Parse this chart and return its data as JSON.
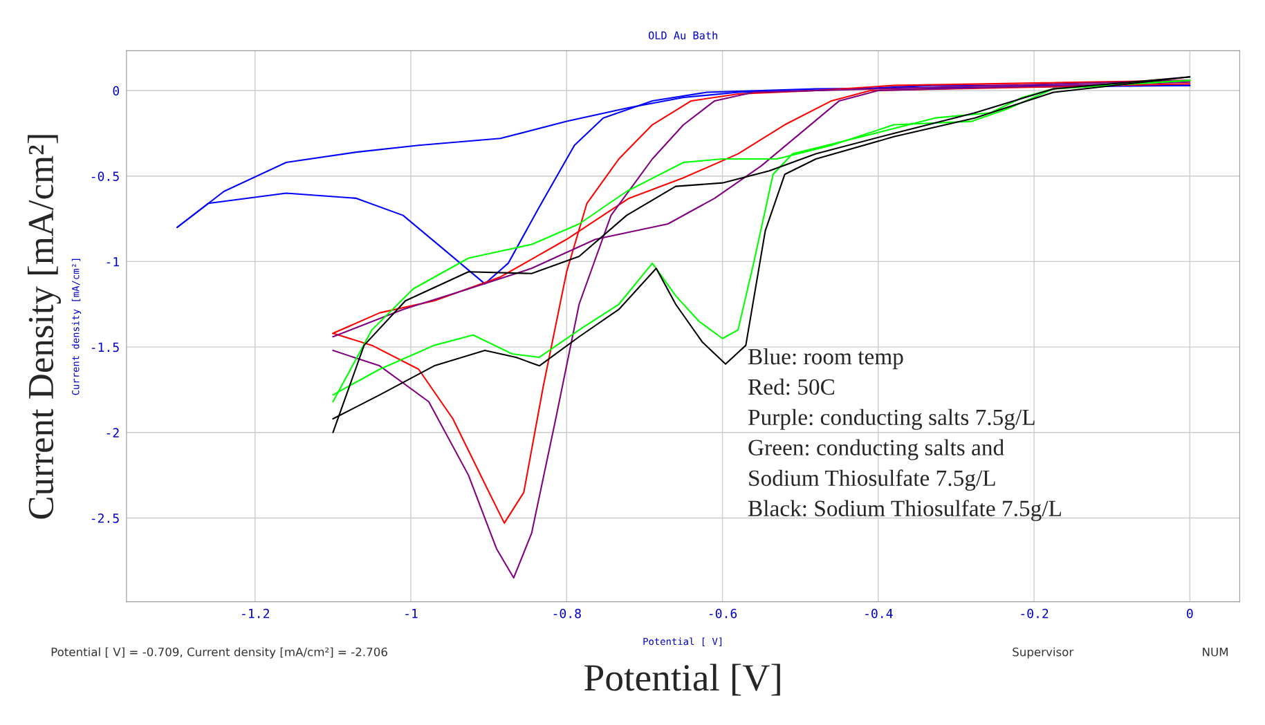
{
  "chart_data": {
    "type": "line",
    "title": "OLD Au Bath",
    "xlabel": "Potential [V]",
    "ylabel": "Current Density [mA/cm²]",
    "xlim": [
      -1.365,
      0.064
    ],
    "ylim": [
      -2.99,
      0.233
    ],
    "xticks": [
      -1.2,
      -1,
      -0.8,
      -0.6,
      -0.4,
      -0.2,
      0
    ],
    "yticks": [
      0,
      -0.5,
      -1,
      -1.5,
      -2,
      -2.5
    ],
    "grid": true,
    "line_style": "solid",
    "marker": "none",
    "annotations": [
      "Blue: room temp",
      "Red: 50C",
      "Purple: conducting salts 7.5g/L",
      "Green: conducting salts and",
      "Sodium Thiosulfate 7.5g/L",
      "Black: Sodium Thiosulfate 7.5g/L",
      "Potential [ V]",
      "Current density [mA/cm²]",
      "Potential [ V] = -0.709, Current density [mA/cm²] = -2.706",
      "Supervisor",
      "NUM"
    ],
    "series": [
      {
        "color": "#0000ff",
        "x": [
          0,
          -0.33,
          -0.48,
          -0.58,
          -0.65,
          -0.72,
          -0.8,
          -0.885,
          -0.99,
          -1.07,
          -1.16,
          -1.24,
          -1.3
        ],
        "values": [
          0.03,
          0.03,
          0,
          -0.01,
          -0.04,
          -0.1,
          -0.18,
          -0.28,
          -0.32,
          -0.36,
          -0.42,
          -0.59,
          -0.8
        ]
      },
      {
        "color": "#0000ff",
        "x": [
          -1.3,
          -1.26,
          -1.16,
          -1.07,
          -1.01,
          -0.96,
          -0.905,
          -0.875,
          -0.835,
          -0.79,
          -0.753,
          -0.69,
          -0.62,
          -0.48,
          0
        ],
        "values": [
          -0.8,
          -0.66,
          -0.6,
          -0.63,
          -0.73,
          -0.92,
          -1.13,
          -1.01,
          -0.68,
          -0.32,
          -0.16,
          -0.06,
          -0.01,
          0.01,
          0.03
        ]
      },
      {
        "color": "#ff0000",
        "x": [
          0,
          -0.41,
          -0.46,
          -0.52,
          -0.58,
          -0.65,
          -0.72,
          -0.8,
          -0.885,
          -0.97,
          -1.04,
          -1.1
        ],
        "values": [
          0.04,
          0,
          -0.06,
          -0.2,
          -0.37,
          -0.51,
          -0.63,
          -0.87,
          -1.09,
          -1.23,
          -1.3,
          -1.42
        ]
      },
      {
        "color": "#ff0000",
        "x": [
          -1.1,
          -1.05,
          -0.99,
          -0.946,
          -0.905,
          -0.88,
          -0.855,
          -0.83,
          -0.8,
          -0.774,
          -0.733,
          -0.69,
          -0.64,
          -0.58,
          -0.48,
          -0.38,
          0
        ],
        "values": [
          -1.42,
          -1.49,
          -1.63,
          -1.92,
          -2.3,
          -2.53,
          -2.35,
          -1.73,
          -1.06,
          -0.66,
          -0.4,
          -0.2,
          -0.06,
          -0.02,
          0,
          0.03,
          0.06
        ]
      },
      {
        "color": "#800080",
        "x": [
          0,
          -0.4,
          -0.45,
          -0.5,
          -0.55,
          -0.61,
          -0.67,
          -0.763,
          -0.845,
          -0.926,
          -1.01,
          -1.1
        ],
        "values": [
          0.05,
          0,
          -0.06,
          -0.25,
          -0.44,
          -0.63,
          -0.78,
          -0.87,
          -1.04,
          -1.16,
          -1.28,
          -1.44
        ]
      },
      {
        "color": "#800080",
        "x": [
          -1.1,
          -1.04,
          -0.977,
          -0.926,
          -0.89,
          -0.868,
          -0.845,
          -0.814,
          -0.784,
          -0.743,
          -0.69,
          -0.65,
          -0.61,
          -0.56,
          0
        ],
        "values": [
          -1.52,
          -1.61,
          -1.82,
          -2.25,
          -2.68,
          -2.85,
          -2.59,
          -1.92,
          -1.25,
          -0.73,
          -0.4,
          -0.2,
          -0.06,
          -0.01,
          0.06
        ]
      },
      {
        "color": "#00ff00",
        "x": [
          0,
          -0.175,
          -0.236,
          -0.28,
          -0.38,
          -0.46,
          -0.53,
          -0.6,
          -0.65,
          -0.723,
          -0.784,
          -0.845,
          -0.926,
          -0.997,
          -1.05,
          -1.1
        ],
        "values": [
          0.06,
          0.01,
          -0.11,
          -0.18,
          -0.2,
          -0.32,
          -0.4,
          -0.4,
          -0.42,
          -0.59,
          -0.78,
          -0.9,
          -0.98,
          -1.16,
          -1.4,
          -1.82
        ]
      },
      {
        "color": "#00ff00",
        "x": [
          -1.1,
          -1.04,
          -0.97,
          -0.92,
          -0.87,
          -0.835,
          -0.784,
          -0.733,
          -0.69,
          -0.66,
          -0.63,
          -0.6,
          -0.58,
          -0.56,
          -0.535,
          -0.51,
          -0.43,
          -0.327,
          -0.256,
          -0.215,
          -0.175,
          0
        ],
        "values": [
          -1.78,
          -1.63,
          -1.49,
          -1.43,
          -1.54,
          -1.56,
          -1.4,
          -1.25,
          -1.01,
          -1.2,
          -1.35,
          -1.45,
          -1.4,
          -1.01,
          -0.49,
          -0.37,
          -0.28,
          -0.16,
          -0.13,
          -0.04,
          0.01,
          0.06
        ]
      },
      {
        "color": "#000000",
        "x": [
          0,
          -0.175,
          -0.276,
          -0.38,
          -0.48,
          -0.54,
          -0.6,
          -0.66,
          -0.723,
          -0.784,
          -0.845,
          -0.926,
          -1.007,
          -1.06,
          -1.1
        ],
        "values": [
          0.08,
          0.01,
          -0.13,
          -0.25,
          -0.37,
          -0.47,
          -0.54,
          -0.56,
          -0.73,
          -0.97,
          -1.07,
          -1.06,
          -1.23,
          -1.49,
          -2.0
        ]
      },
      {
        "color": "#000000",
        "x": [
          -1.1,
          -1.04,
          -0.97,
          -0.905,
          -0.865,
          -0.835,
          -0.784,
          -0.733,
          -0.685,
          -0.66,
          -0.626,
          -0.596,
          -0.57,
          -0.545,
          -0.52,
          -0.48,
          -0.38,
          -0.276,
          -0.175,
          0
        ],
        "values": [
          -1.92,
          -1.78,
          -1.61,
          -1.52,
          -1.56,
          -1.61,
          -1.44,
          -1.28,
          -1.04,
          -1.25,
          -1.47,
          -1.6,
          -1.49,
          -0.82,
          -0.49,
          -0.4,
          -0.27,
          -0.16,
          -0.01,
          0.08
        ]
      }
    ]
  }
}
